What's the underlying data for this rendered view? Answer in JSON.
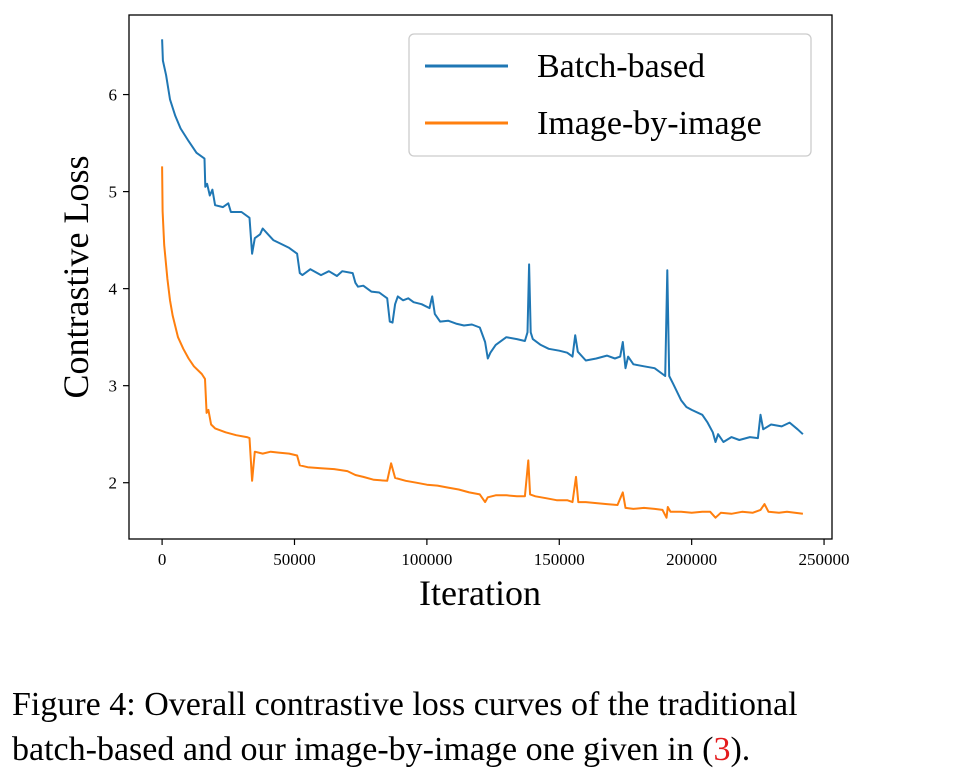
{
  "chart_data": {
    "type": "line",
    "title": "",
    "xlabel": "Iteration",
    "ylabel": "Contrastive Loss",
    "xlim": [
      -12500,
      253000
    ],
    "ylim": [
      1.42,
      6.82
    ],
    "xticks": [
      0,
      50000,
      100000,
      150000,
      200000,
      250000
    ],
    "yticks": [
      2,
      3,
      4,
      5,
      6
    ],
    "legend_position": "upper right",
    "grid": false,
    "series": [
      {
        "name": "Batch-based",
        "color": "#1f77b4",
        "points": [
          [
            0,
            6.57
          ],
          [
            300,
            6.35
          ],
          [
            1500,
            6.2
          ],
          [
            3000,
            5.95
          ],
          [
            5000,
            5.78
          ],
          [
            7000,
            5.65
          ],
          [
            10000,
            5.52
          ],
          [
            13000,
            5.4
          ],
          [
            16000,
            5.34
          ],
          [
            16300,
            5.05
          ],
          [
            17000,
            5.08
          ],
          [
            18000,
            4.96
          ],
          [
            19000,
            5.02
          ],
          [
            20000,
            4.86
          ],
          [
            23000,
            4.84
          ],
          [
            25000,
            4.88
          ],
          [
            26000,
            4.79
          ],
          [
            30000,
            4.79
          ],
          [
            33000,
            4.73
          ],
          [
            34000,
            4.36
          ],
          [
            35000,
            4.52
          ],
          [
            37000,
            4.56
          ],
          [
            38000,
            4.62
          ],
          [
            40000,
            4.56
          ],
          [
            42000,
            4.5
          ],
          [
            45000,
            4.46
          ],
          [
            48000,
            4.42
          ],
          [
            51000,
            4.36
          ],
          [
            52000,
            4.16
          ],
          [
            53000,
            4.14
          ],
          [
            56000,
            4.2
          ],
          [
            60000,
            4.14
          ],
          [
            63000,
            4.18
          ],
          [
            66000,
            4.13
          ],
          [
            68000,
            4.18
          ],
          [
            72000,
            4.16
          ],
          [
            73000,
            4.06
          ],
          [
            74000,
            4.02
          ],
          [
            76000,
            4.03
          ],
          [
            79000,
            3.97
          ],
          [
            82000,
            3.96
          ],
          [
            85000,
            3.9
          ],
          [
            86000,
            3.66
          ],
          [
            87000,
            3.65
          ],
          [
            88000,
            3.84
          ],
          [
            89000,
            3.92
          ],
          [
            91000,
            3.88
          ],
          [
            93000,
            3.9
          ],
          [
            95000,
            3.86
          ],
          [
            98000,
            3.84
          ],
          [
            101000,
            3.8
          ],
          [
            102000,
            3.92
          ],
          [
            103000,
            3.74
          ],
          [
            105000,
            3.66
          ],
          [
            108000,
            3.67
          ],
          [
            111000,
            3.64
          ],
          [
            114000,
            3.62
          ],
          [
            117000,
            3.63
          ],
          [
            120000,
            3.6
          ],
          [
            122000,
            3.45
          ],
          [
            123000,
            3.28
          ],
          [
            124000,
            3.34
          ],
          [
            126000,
            3.42
          ],
          [
            130000,
            3.5
          ],
          [
            134000,
            3.48
          ],
          [
            137000,
            3.46
          ],
          [
            138000,
            3.55
          ],
          [
            138600,
            4.25
          ],
          [
            139200,
            3.55
          ],
          [
            140000,
            3.48
          ],
          [
            143000,
            3.42
          ],
          [
            146000,
            3.38
          ],
          [
            150000,
            3.36
          ],
          [
            153000,
            3.34
          ],
          [
            155000,
            3.3
          ],
          [
            156000,
            3.52
          ],
          [
            157000,
            3.35
          ],
          [
            160000,
            3.26
          ],
          [
            164000,
            3.28
          ],
          [
            168000,
            3.31
          ],
          [
            171000,
            3.28
          ],
          [
            173000,
            3.3
          ],
          [
            174000,
            3.45
          ],
          [
            175000,
            3.18
          ],
          [
            176000,
            3.3
          ],
          [
            178000,
            3.22
          ],
          [
            182000,
            3.2
          ],
          [
            186000,
            3.18
          ],
          [
            189000,
            3.12
          ],
          [
            190000,
            3.1
          ],
          [
            190800,
            4.19
          ],
          [
            191500,
            3.1
          ],
          [
            193000,
            3.02
          ],
          [
            196000,
            2.85
          ],
          [
            198000,
            2.78
          ],
          [
            200000,
            2.75
          ],
          [
            204000,
            2.7
          ],
          [
            206000,
            2.62
          ],
          [
            208000,
            2.52
          ],
          [
            209000,
            2.42
          ],
          [
            210000,
            2.5
          ],
          [
            212000,
            2.42
          ],
          [
            215000,
            2.47
          ],
          [
            218000,
            2.44
          ],
          [
            222000,
            2.47
          ],
          [
            225000,
            2.46
          ],
          [
            226000,
            2.7
          ],
          [
            227000,
            2.55
          ],
          [
            230000,
            2.6
          ],
          [
            234000,
            2.58
          ],
          [
            237000,
            2.62
          ],
          [
            240000,
            2.55
          ],
          [
            242000,
            2.5
          ]
        ]
      },
      {
        "name": "Image-by-image",
        "color": "#ff7f0e",
        "points": [
          [
            0,
            5.26
          ],
          [
            200,
            4.8
          ],
          [
            800,
            4.45
          ],
          [
            2000,
            4.1
          ],
          [
            3000,
            3.88
          ],
          [
            4000,
            3.72
          ],
          [
            6000,
            3.5
          ],
          [
            8000,
            3.38
          ],
          [
            10000,
            3.28
          ],
          [
            12000,
            3.2
          ],
          [
            15000,
            3.12
          ],
          [
            16200,
            3.07
          ],
          [
            16800,
            2.72
          ],
          [
            17500,
            2.75
          ],
          [
            18500,
            2.6
          ],
          [
            20000,
            2.56
          ],
          [
            24000,
            2.52
          ],
          [
            28000,
            2.49
          ],
          [
            32000,
            2.47
          ],
          [
            33000,
            2.46
          ],
          [
            34000,
            2.02
          ],
          [
            35000,
            2.32
          ],
          [
            38000,
            2.3
          ],
          [
            41000,
            2.32
          ],
          [
            44000,
            2.31
          ],
          [
            48000,
            2.3
          ],
          [
            51000,
            2.28
          ],
          [
            52000,
            2.18
          ],
          [
            55000,
            2.16
          ],
          [
            60000,
            2.15
          ],
          [
            65000,
            2.14
          ],
          [
            70000,
            2.12
          ],
          [
            73000,
            2.08
          ],
          [
            76000,
            2.06
          ],
          [
            80000,
            2.03
          ],
          [
            85000,
            2.02
          ],
          [
            86500,
            2.2
          ],
          [
            88000,
            2.05
          ],
          [
            92000,
            2.02
          ],
          [
            96000,
            2.0
          ],
          [
            100000,
            1.98
          ],
          [
            104000,
            1.97
          ],
          [
            108000,
            1.95
          ],
          [
            112000,
            1.93
          ],
          [
            116000,
            1.9
          ],
          [
            120000,
            1.88
          ],
          [
            122000,
            1.8
          ],
          [
            123000,
            1.85
          ],
          [
            126000,
            1.87
          ],
          [
            130000,
            1.87
          ],
          [
            134000,
            1.86
          ],
          [
            137000,
            1.86
          ],
          [
            138300,
            2.23
          ],
          [
            139000,
            1.88
          ],
          [
            141000,
            1.86
          ],
          [
            145000,
            1.84
          ],
          [
            149000,
            1.82
          ],
          [
            153000,
            1.82
          ],
          [
            155000,
            1.8
          ],
          [
            156300,
            2.06
          ],
          [
            157200,
            1.8
          ],
          [
            160000,
            1.8
          ],
          [
            164000,
            1.79
          ],
          [
            168000,
            1.78
          ],
          [
            172000,
            1.77
          ],
          [
            174000,
            1.9
          ],
          [
            175000,
            1.74
          ],
          [
            178000,
            1.73
          ],
          [
            182000,
            1.74
          ],
          [
            186000,
            1.73
          ],
          [
            189000,
            1.72
          ],
          [
            190500,
            1.64
          ],
          [
            191000,
            1.75
          ],
          [
            192000,
            1.7
          ],
          [
            196000,
            1.7
          ],
          [
            200000,
            1.69
          ],
          [
            204000,
            1.7
          ],
          [
            207000,
            1.7
          ],
          [
            209000,
            1.64
          ],
          [
            211000,
            1.69
          ],
          [
            215000,
            1.68
          ],
          [
            219000,
            1.7
          ],
          [
            223000,
            1.69
          ],
          [
            226000,
            1.72
          ],
          [
            227500,
            1.78
          ],
          [
            229000,
            1.7
          ],
          [
            233000,
            1.69
          ],
          [
            236000,
            1.7
          ],
          [
            239000,
            1.69
          ],
          [
            242000,
            1.68
          ]
        ]
      }
    ]
  },
  "caption": {
    "line1": "Figure 4: Overall contrastive loss curves of the traditional",
    "line2_text": "batch-based and our image-by-image one given in (",
    "ref": "3",
    "line2_end": ")."
  }
}
